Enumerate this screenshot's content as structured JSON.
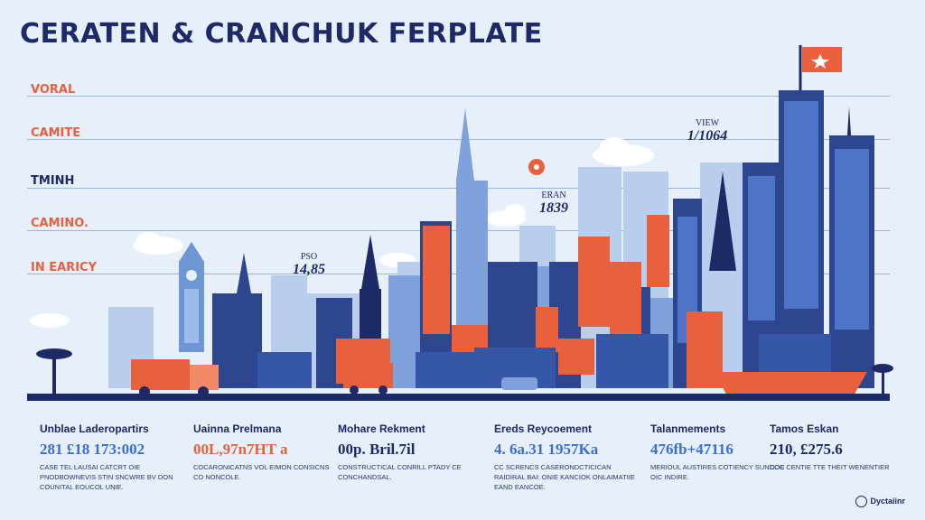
{
  "title": "CERATEN & CRANCHUK FERPLATE",
  "rows": [
    {
      "label": "VORAL",
      "color": "#e8613c"
    },
    {
      "label": "CAMITE",
      "color": "#e8613c"
    },
    {
      "label": "TMINH",
      "color": "#1d2a66"
    },
    {
      "label": "CAMINO.",
      "color": "#e8613c"
    },
    {
      "label": "IN EARICY",
      "color": "#e8613c"
    }
  ],
  "callouts": [
    {
      "key": "PSO",
      "value": "14,85"
    },
    {
      "key": "ERAN",
      "value": "1839"
    },
    {
      "key": "VIEW",
      "value": "1/1064"
    }
  ],
  "stats": [
    {
      "heading": "Unblae Laderopartirs",
      "number": "281 £18 173:002",
      "color": "#3b6fd4",
      "desc": "CASE TEL LAUSAI CATCRT OIE PNODBOWNEVIS STIN SNCWRE BV DON COUNITAL EOUCOL UNIE."
    },
    {
      "heading": "Uainna Prelmana",
      "number": "00L,97n7HT a",
      "color": "#e8613c",
      "desc": "COCARONICATNS VOL EIMON CONSICNS CO NONCOLE."
    },
    {
      "heading": "Mohare Rekment",
      "number": "00p. Bril.7il",
      "color": "#1d2a66",
      "desc": "CONSTRUCTICAL CONRILL PTADY CE CONCHANDSAL."
    },
    {
      "heading": "Ereds Reycoement",
      "number": "4. 6a.31 1957Ka",
      "color": "#3b6fd4",
      "desc": "CC SCRENCS CASERONDCTICICAN RAIDIRAL BAI: ONIE KANCIOK ONLAIMATIIE EAND EANCOE."
    },
    {
      "heading": "Talanmements",
      "number": "476fb+47116",
      "color": "#3b6fd4",
      "desc": "MERIOUL AUSTIRES COTIENCY SUNDOC OIC INDIRE."
    },
    {
      "heading": "Tamos Eskan",
      "number": "210, £275.6",
      "color": "#1d2a66",
      "desc": "COE CENTIE TTE THEIT WENENTIER"
    }
  ],
  "brand": "Dyctaiinr",
  "colors": {
    "navy": "#1d2a66",
    "orange": "#e8613c",
    "blue": "#3b6fd4",
    "bg": "#e6effa"
  }
}
